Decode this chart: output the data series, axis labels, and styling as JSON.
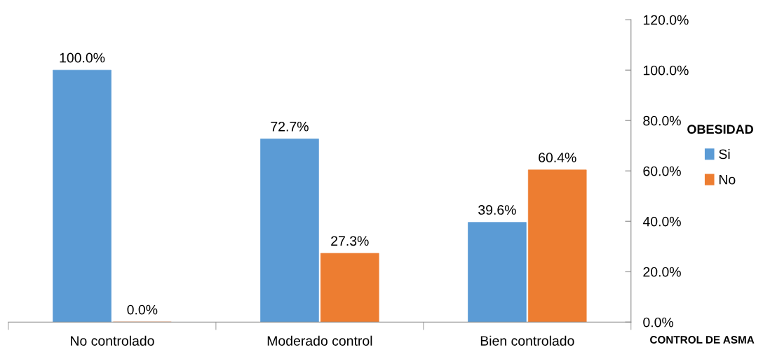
{
  "chart_data": {
    "type": "bar",
    "categories": [
      "No controlado",
      "Moderado control",
      "Bien controlado"
    ],
    "xlabel": "CONTROL DE ASMA",
    "legend_title": "OBESIDAD",
    "legend": "right",
    "series": [
      {
        "name": "Si",
        "color": "#5b9bd5",
        "values": [
          100.0,
          72.7,
          39.6
        ],
        "value_labels": [
          "100.0%",
          "72.7%",
          "39.6%"
        ]
      },
      {
        "name": "No",
        "color": "#ed7d31",
        "values": [
          0.0,
          27.3,
          60.4
        ],
        "value_labels": [
          "0.0%",
          "27.3%",
          "60.4%"
        ]
      }
    ],
    "ylim": [
      0,
      120
    ],
    "yticks": [
      {
        "value": 0,
        "label": "0.0%"
      },
      {
        "value": 20,
        "label": "20.0%"
      },
      {
        "value": 40,
        "label": "40.0%"
      },
      {
        "value": 60,
        "label": "60.0%"
      },
      {
        "value": 80,
        "label": "80.0%"
      },
      {
        "value": 100,
        "label": "100.0%"
      },
      {
        "value": 120,
        "label": "120.0%"
      }
    ],
    "grid": false
  }
}
